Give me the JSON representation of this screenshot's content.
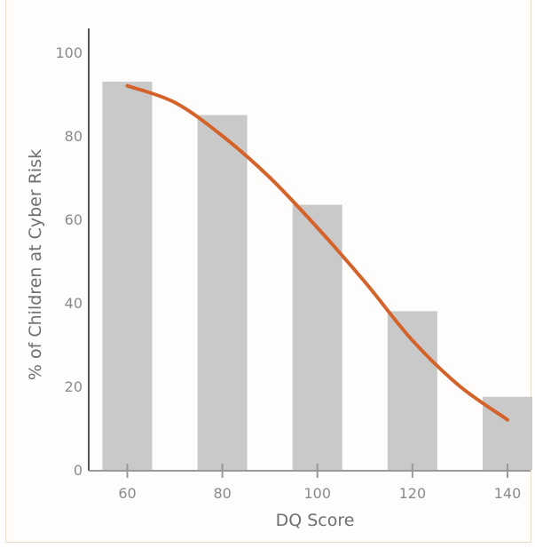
{
  "chart_data": {
    "type": "bar",
    "xlabel": "DQ Score",
    "ylabel": "% of Children at Cyber Risk",
    "categories": [
      "60",
      "80",
      "100",
      "120",
      "140"
    ],
    "x": [
      60,
      80,
      100,
      120,
      140
    ],
    "values": [
      93,
      85,
      63.5,
      38,
      17.5
    ],
    "ylim": [
      0,
      100
    ],
    "yticks": [
      0,
      20,
      40,
      60,
      80,
      100
    ],
    "grid": false,
    "trend_line": {
      "type": "line",
      "points": [
        [
          60,
          92
        ],
        [
          70,
          88
        ],
        [
          80,
          80
        ],
        [
          90,
          70
        ],
        [
          100,
          58
        ],
        [
          110,
          45
        ],
        [
          120,
          31
        ],
        [
          130,
          20
        ],
        [
          140,
          12
        ]
      ]
    },
    "colors": {
      "bar": "#c9c9c9",
      "line": "#d4622b",
      "axis": "#999999"
    }
  }
}
